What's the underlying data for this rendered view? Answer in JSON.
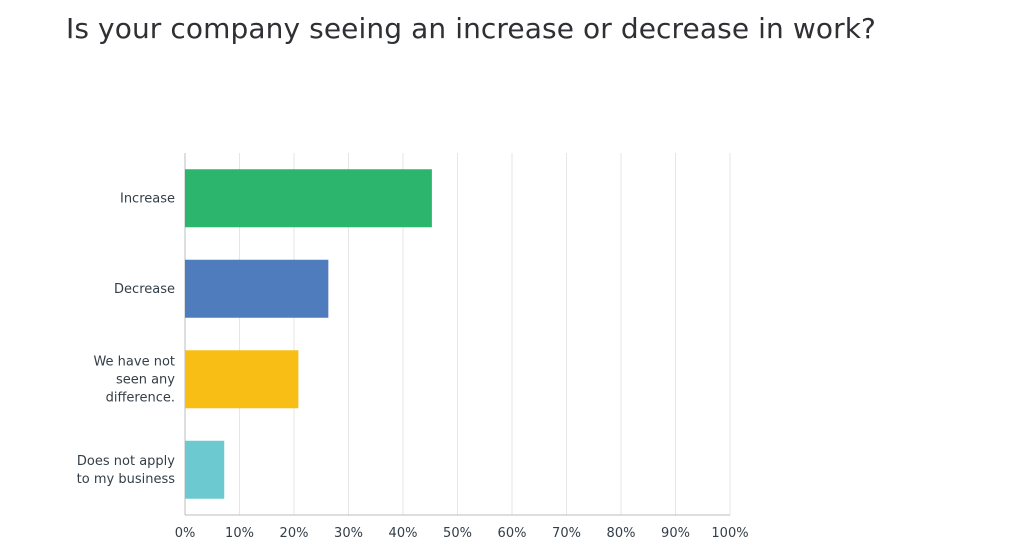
{
  "chart_data": {
    "type": "bar",
    "orientation": "horizontal",
    "title": "Is your company seeing an increase or decrease in work?",
    "categories": [
      [
        "Increase"
      ],
      [
        "Decrease"
      ],
      [
        "We have not",
        "seen any",
        "difference."
      ],
      [
        "Does not apply",
        "to my business"
      ]
    ],
    "values": [
      45.3,
      26.3,
      20.8,
      7.2
    ],
    "colors": [
      "#2bb56d",
      "#4e7cbc",
      "#f8be15",
      "#6cc9cf"
    ],
    "xlim": [
      0,
      100
    ],
    "ticks": [
      "0%",
      "10%",
      "20%",
      "30%",
      "40%",
      "50%",
      "60%",
      "70%",
      "80%",
      "90%",
      "100%"
    ],
    "grid": true,
    "legend": "none"
  }
}
